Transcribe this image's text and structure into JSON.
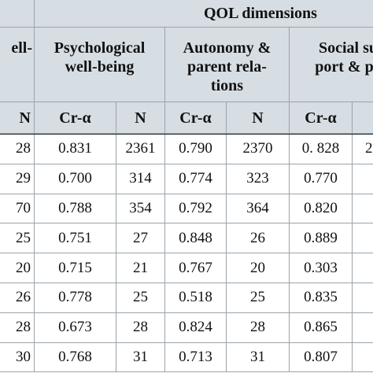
{
  "header": {
    "title": "QOL dimensions",
    "groups": [
      "ell-",
      "Psychological\nwell-being",
      "Autonomy &\nparent rela-\ntions",
      "Social su\nport & po"
    ],
    "subcolumns": [
      "N",
      "Cr-α",
      "N",
      "Cr-α",
      "N",
      "Cr-α"
    ]
  },
  "table": {
    "rows": [
      [
        "28",
        "0.831",
        "2361",
        "0.790",
        "2370",
        "0. 828",
        "2"
      ],
      [
        "29",
        "0.700",
        "314",
        "0.774",
        "323",
        "0.770"
      ],
      [
        "70",
        "0.788",
        "354",
        "0.792",
        "364",
        "0.820"
      ],
      [
        "25",
        "0.751",
        "27",
        "0.848",
        "26",
        "0.889"
      ],
      [
        "20",
        "0.715",
        "21",
        "0.767",
        "20",
        "0.303"
      ],
      [
        "26",
        "0.778",
        "25",
        "0.518",
        "25",
        "0.835"
      ],
      [
        "28",
        "0.673",
        "28",
        "0.824",
        "28",
        "0.865"
      ],
      [
        "30",
        "0.768",
        "31",
        "0.713",
        "31",
        "0.807"
      ]
    ]
  }
}
